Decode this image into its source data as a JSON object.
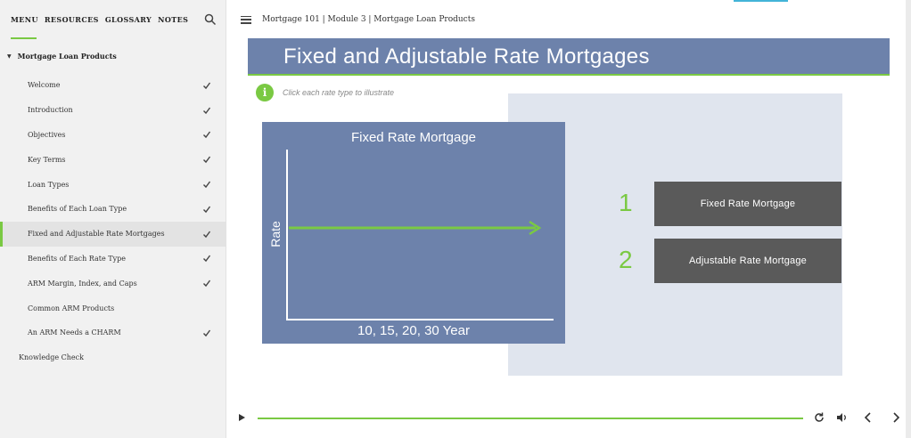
{
  "sidebar": {
    "tabs": [
      {
        "label": "MENU"
      },
      {
        "label": "RESOURCES"
      },
      {
        "label": "GLOSSARY"
      },
      {
        "label": "NOTES"
      }
    ],
    "section_title": "Mortgage Loan Products",
    "items": [
      {
        "label": "Welcome",
        "completed": true
      },
      {
        "label": "Introduction",
        "completed": true
      },
      {
        "label": "Objectives",
        "completed": true
      },
      {
        "label": "Key Terms",
        "completed": true
      },
      {
        "label": "Loan Types",
        "completed": true
      },
      {
        "label": "Benefits of Each Loan Type",
        "completed": true
      },
      {
        "label": "Fixed and Adjustable Rate Mortgages",
        "completed": true,
        "active": true
      },
      {
        "label": "Benefits of Each Rate Type",
        "completed": true
      },
      {
        "label": "ARM Margin, Index, and Caps",
        "completed": true
      },
      {
        "label": "Common ARM Products",
        "completed": false
      },
      {
        "label": "An ARM Needs a CHARM",
        "completed": true
      }
    ],
    "top_item": "Knowledge Check"
  },
  "header": {
    "breadcrumb": "Mortgage 101 | Module 3 | Mortgage Loan Products"
  },
  "slide": {
    "title": "Fixed and Adjustable Rate Mortgages",
    "info_icon_glyph": "i",
    "instruction": "Click each rate type to illustrate",
    "chart": {
      "title": "Fixed Rate Mortgage",
      "ylabel": "Rate",
      "xlabel": "10, 15, 20, 30 Year"
    },
    "options": [
      {
        "number": "1",
        "label": "Fixed Rate Mortgage"
      },
      {
        "number": "2",
        "label": "Adjustable Rate Mortgage"
      }
    ]
  },
  "player": {
    "progress": 1.0
  },
  "colors": {
    "accent_green": "#7ac943",
    "slide_blue": "#6d82ab",
    "panel_bg": "#e0e5ee",
    "button_gray": "#5a5a5a"
  }
}
